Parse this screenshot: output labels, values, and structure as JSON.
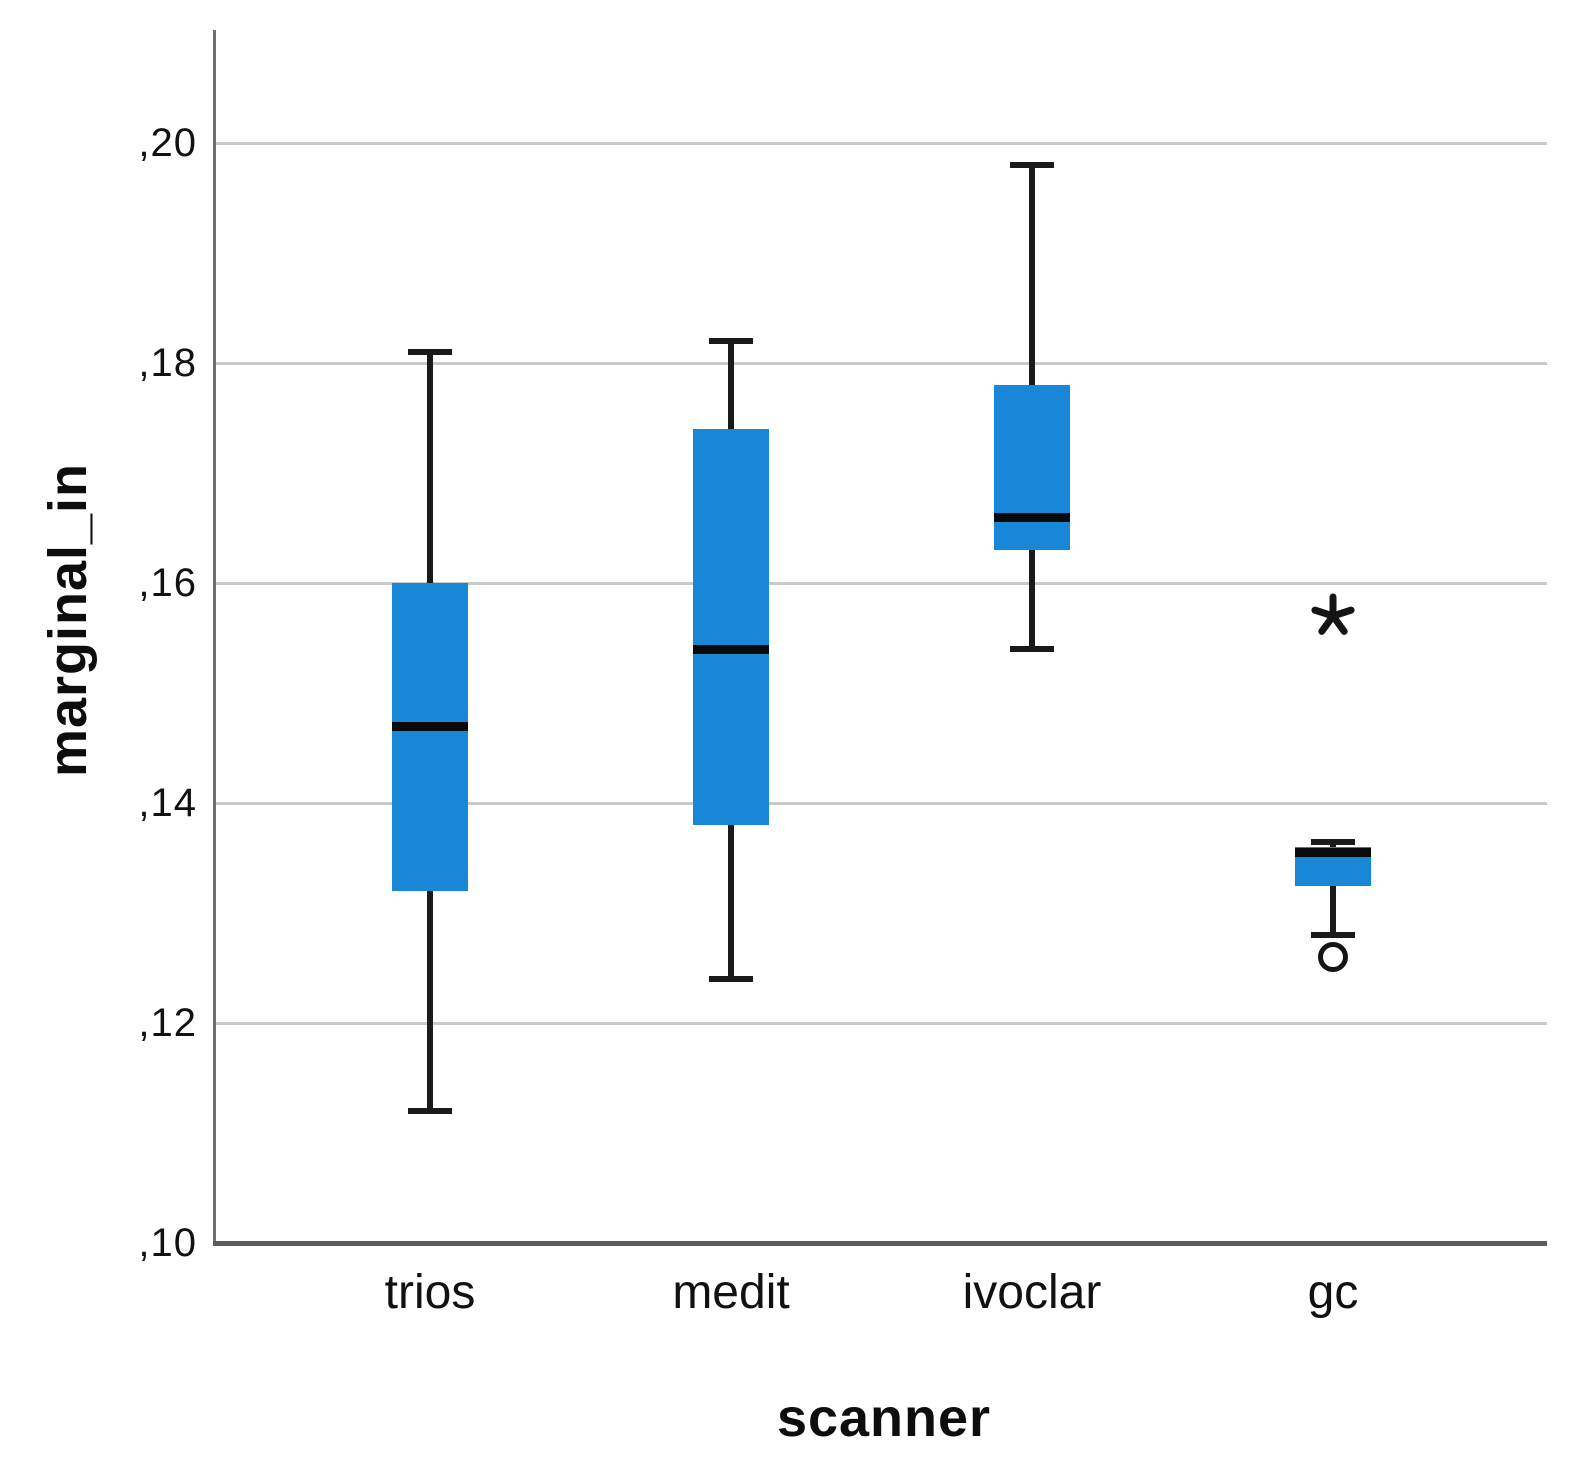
{
  "chart_data": {
    "type": "boxplot",
    "title": "",
    "xlabel": "scanner",
    "ylabel": "marginal_in",
    "categories": [
      "trios",
      "medit",
      "ivoclar",
      "gc"
    ],
    "y_axis": {
      "min": 0.1,
      "max": 0.21,
      "tick_step": 0.02,
      "decimal_separator": ",",
      "ticks": [
        {
          "value": 0.1,
          "label": ",10"
        },
        {
          "value": 0.12,
          "label": ",12"
        },
        {
          "value": 0.14,
          "label": ",14"
        },
        {
          "value": 0.16,
          "label": ",16"
        },
        {
          "value": 0.18,
          "label": ",18"
        },
        {
          "value": 0.2,
          "label": ",20"
        }
      ]
    },
    "series": [
      {
        "category": "trios",
        "min": 0.112,
        "q1": 0.132,
        "median": 0.147,
        "q3": 0.16,
        "max": 0.181,
        "outliers": [],
        "extremes": []
      },
      {
        "category": "medit",
        "min": 0.124,
        "q1": 0.138,
        "median": 0.154,
        "q3": 0.174,
        "max": 0.182,
        "outliers": [],
        "extremes": []
      },
      {
        "category": "ivoclar",
        "min": 0.154,
        "q1": 0.163,
        "median": 0.166,
        "q3": 0.178,
        "max": 0.198,
        "outliers": [],
        "extremes": []
      },
      {
        "category": "gc",
        "min": 0.128,
        "q1": 0.1325,
        "median": 0.1355,
        "q3": 0.136,
        "max": 0.1365,
        "outliers": [
          0.126
        ],
        "extremes": [
          0.157
        ]
      }
    ],
    "colors": {
      "box_fill": "#1987d8",
      "median": "#0a0a0a",
      "whisker": "#1a1a1a",
      "gridline": "#c9c9c9",
      "axis": "#6e6e6e"
    },
    "grid": true,
    "legend": false
  }
}
